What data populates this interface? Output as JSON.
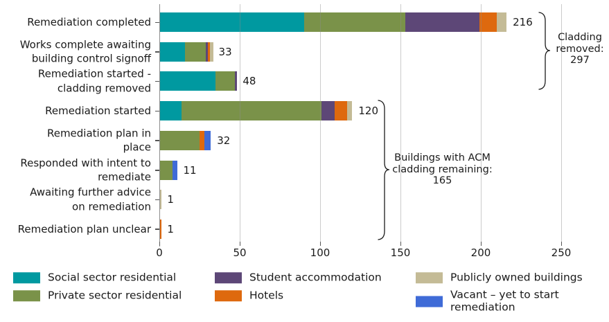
{
  "chart_data": {
    "type": "bar",
    "orientation": "horizontal",
    "stacked": true,
    "title": "",
    "xlabel": "",
    "ylabel": "",
    "xlim": [
      0,
      255
    ],
    "grid": "vertical",
    "legend_position": "bottom",
    "x_ticks": [
      "0",
      "50",
      "100",
      "150",
      "200",
      "250"
    ],
    "categories": [
      "Remediation completed",
      "Works complete awaiting\nbuilding control signoff",
      "Remediation started -\ncladding removed",
      "Remediation started",
      "Remediation plan in\nplace",
      "Responded with intent to\nremediate",
      "Awaiting further advice\non remediation",
      "Remediation plan unclear"
    ],
    "series": [
      {
        "name": "Social sector residential",
        "color": "#0099A0",
        "values": [
          90,
          16,
          35,
          14,
          0,
          0,
          0,
          0
        ]
      },
      {
        "name": "Private sector residential",
        "color": "#7A9249",
        "values": [
          63,
          13,
          12,
          87,
          25,
          8,
          0,
          0
        ]
      },
      {
        "name": "Student accommodation",
        "color": "#5D4777",
        "values": [
          46,
          1,
          1,
          8,
          0,
          0,
          0,
          0
        ]
      },
      {
        "name": "Hotels",
        "color": "#DE690E",
        "values": [
          11,
          1,
          0,
          8,
          3,
          0,
          0,
          1
        ]
      },
      {
        "name": "Publicly owned buildings",
        "color": "#C4BB96",
        "values": [
          6,
          2,
          0,
          3,
          0,
          0,
          1,
          0
        ]
      },
      {
        "name": "Vacant – yet to start remediation",
        "color": "#3F6BD7",
        "values": [
          0,
          0,
          0,
          0,
          4,
          3,
          0,
          0
        ]
      }
    ],
    "totals": [
      216,
      33,
      48,
      120,
      32,
      11,
      1,
      1
    ],
    "legend": [
      {
        "label": "Social sector residential",
        "color": "#0099A0"
      },
      {
        "label": "Private sector residential",
        "color": "#7A9249"
      },
      {
        "label": "Student accommodation",
        "color": "#5D4777"
      },
      {
        "label": "Hotels",
        "color": "#DE690E"
      },
      {
        "label": "Publicly owned buildings",
        "color": "#C4BB96"
      },
      {
        "label": "Vacant – yet to start\nremediation",
        "color": "#3F6BD7"
      }
    ],
    "annotations": [
      {
        "label": "Cladding removed:\n297",
        "total": 297,
        "covers_bars": [
          0,
          1,
          2
        ]
      },
      {
        "label": "Buildings with ACM\ncladding remaining:\n165",
        "total": 165,
        "covers_bars": [
          3,
          4,
          5,
          6,
          7
        ]
      }
    ]
  }
}
